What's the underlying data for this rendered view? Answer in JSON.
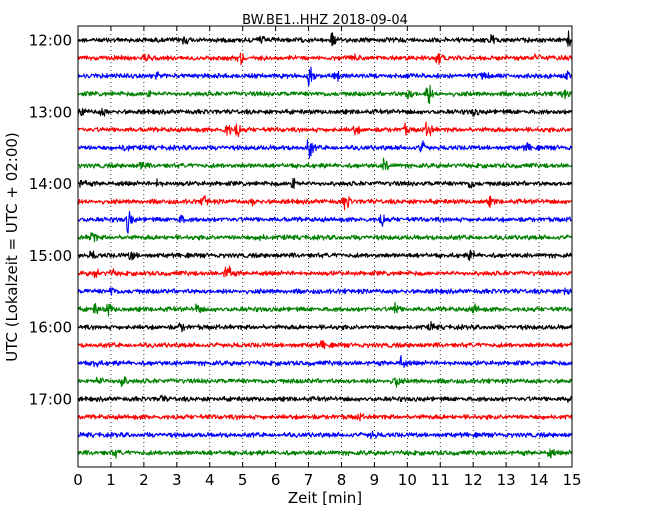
{
  "chart_data": {
    "type": "line",
    "title": "BW.BE1..HHZ 2018-09-04",
    "xlabel": "Zeit  [min]",
    "ylabel": "UTC (Lokalzeit = UTC + 02:00)",
    "xlim": [
      0,
      15
    ],
    "x_ticks": [
      0,
      1,
      2,
      3,
      4,
      5,
      6,
      7,
      8,
      9,
      10,
      11,
      12,
      13,
      14,
      15
    ],
    "x_tick_labels": [
      "0",
      "1",
      "2",
      "3",
      "4",
      "5",
      "6",
      "7",
      "8",
      "9",
      "10",
      "11",
      "12",
      "13",
      "14",
      "15"
    ],
    "y_tick_labels": [
      "12:00",
      "13:00",
      "14:00",
      "15:00",
      "16:00",
      "17:00"
    ],
    "y_tick_trace_index": [
      0,
      4,
      8,
      12,
      16,
      20
    ],
    "grid": "vertical dotted at each minute",
    "color_cycle": [
      "#000000",
      "#ff0000",
      "#0000ff",
      "#008000"
    ],
    "traces": [
      {
        "start": "12:00",
        "color": "#000000",
        "events": [
          [
            3.2,
            0.35
          ],
          [
            5.5,
            0.5
          ],
          [
            7.7,
            0.6
          ],
          [
            12.5,
            0.45
          ],
          [
            14.9,
            0.55
          ]
        ]
      },
      {
        "start": "12:15",
        "color": "#ff0000",
        "events": [
          [
            2.0,
            0.3
          ],
          [
            4.9,
            0.6
          ],
          [
            8.4,
            0.25
          ],
          [
            10.9,
            0.45
          ],
          [
            13.9,
            0.3
          ]
        ]
      },
      {
        "start": "12:30",
        "color": "#0000ff",
        "events": [
          [
            2.4,
            0.3
          ],
          [
            7.0,
            0.75
          ],
          [
            7.8,
            0.8
          ],
          [
            12.3,
            0.45
          ],
          [
            14.8,
            0.35
          ]
        ]
      },
      {
        "start": "12:45",
        "color": "#008000",
        "events": [
          [
            2.1,
            0.3
          ],
          [
            10.0,
            0.45
          ],
          [
            10.6,
            1.0
          ],
          [
            14.7,
            0.35
          ]
        ]
      },
      {
        "start": "13:00",
        "color": "#000000",
        "events": [
          [
            0.1,
            0.35
          ],
          [
            0.7,
            0.3
          ],
          [
            12.0,
            0.3
          ]
        ]
      },
      {
        "start": "13:15",
        "color": "#ff0000",
        "events": [
          [
            4.5,
            0.6
          ],
          [
            4.8,
            0.55
          ],
          [
            8.4,
            0.35
          ],
          [
            9.9,
            0.35
          ],
          [
            10.6,
            0.75
          ]
        ]
      },
      {
        "start": "13:30",
        "color": "#0000ff",
        "events": [
          [
            1.4,
            0.3
          ],
          [
            7.0,
            0.85
          ],
          [
            10.4,
            0.5
          ],
          [
            13.6,
            0.3
          ]
        ]
      },
      {
        "start": "13:45",
        "color": "#008000",
        "events": [
          [
            1.9,
            0.3
          ],
          [
            9.3,
            0.55
          ]
        ]
      },
      {
        "start": "14:00",
        "color": "#000000",
        "events": [
          [
            0.1,
            0.3
          ],
          [
            2.4,
            0.25
          ],
          [
            6.5,
            0.55
          ],
          [
            11.9,
            0.35
          ]
        ]
      },
      {
        "start": "14:15",
        "color": "#ff0000",
        "events": [
          [
            3.8,
            0.5
          ],
          [
            5.3,
            0.3
          ],
          [
            8.1,
            0.65
          ],
          [
            12.5,
            0.3
          ]
        ]
      },
      {
        "start": "14:30",
        "color": "#0000ff",
        "events": [
          [
            1.5,
            1.0
          ],
          [
            3.1,
            0.3
          ],
          [
            9.2,
            0.45
          ]
        ]
      },
      {
        "start": "14:45",
        "color": "#008000",
        "events": [
          [
            0.4,
            0.55
          ],
          [
            5.5,
            0.25
          ]
        ]
      },
      {
        "start": "15:00",
        "color": "#000000",
        "events": [
          [
            0.4,
            0.3
          ],
          [
            1.6,
            0.45
          ],
          [
            11.9,
            0.4
          ]
        ]
      },
      {
        "start": "15:15",
        "color": "#ff0000",
        "events": [
          [
            0.5,
            0.3
          ],
          [
            1.0,
            0.25
          ],
          [
            4.5,
            0.95
          ]
        ]
      },
      {
        "start": "15:30",
        "color": "#0000ff",
        "events": [
          [
            1.0,
            0.3
          ],
          [
            14.8,
            0.35
          ]
        ]
      },
      {
        "start": "15:45",
        "color": "#008000",
        "events": [
          [
            0.5,
            0.35
          ],
          [
            0.9,
            0.5
          ],
          [
            3.6,
            0.35
          ],
          [
            9.6,
            0.55
          ],
          [
            12.0,
            0.4
          ]
        ]
      },
      {
        "start": "16:00",
        "color": "#000000",
        "events": [
          [
            3.1,
            0.3
          ],
          [
            10.7,
            0.25
          ]
        ]
      },
      {
        "start": "16:15",
        "color": "#ff0000",
        "events": [
          [
            7.4,
            0.25
          ]
        ]
      },
      {
        "start": "16:30",
        "color": "#0000ff",
        "events": [
          [
            0.5,
            0.3
          ],
          [
            9.8,
            0.55
          ]
        ]
      },
      {
        "start": "16:45",
        "color": "#008000",
        "events": [
          [
            0.6,
            0.35
          ],
          [
            1.3,
            0.65
          ],
          [
            9.6,
            0.6
          ]
        ]
      },
      {
        "start": "17:00",
        "color": "#000000",
        "events": [
          [
            2.5,
            0.25
          ],
          [
            14.9,
            0.25
          ]
        ]
      },
      {
        "start": "17:15",
        "color": "#ff0000",
        "events": [
          [
            8.5,
            0.2
          ]
        ]
      },
      {
        "start": "17:30",
        "color": "#0000ff",
        "events": [
          [
            8.9,
            0.3
          ]
        ]
      },
      {
        "start": "17:45",
        "color": "#008000",
        "events": [
          [
            1.1,
            0.25
          ],
          [
            14.3,
            0.35
          ]
        ]
      }
    ]
  }
}
